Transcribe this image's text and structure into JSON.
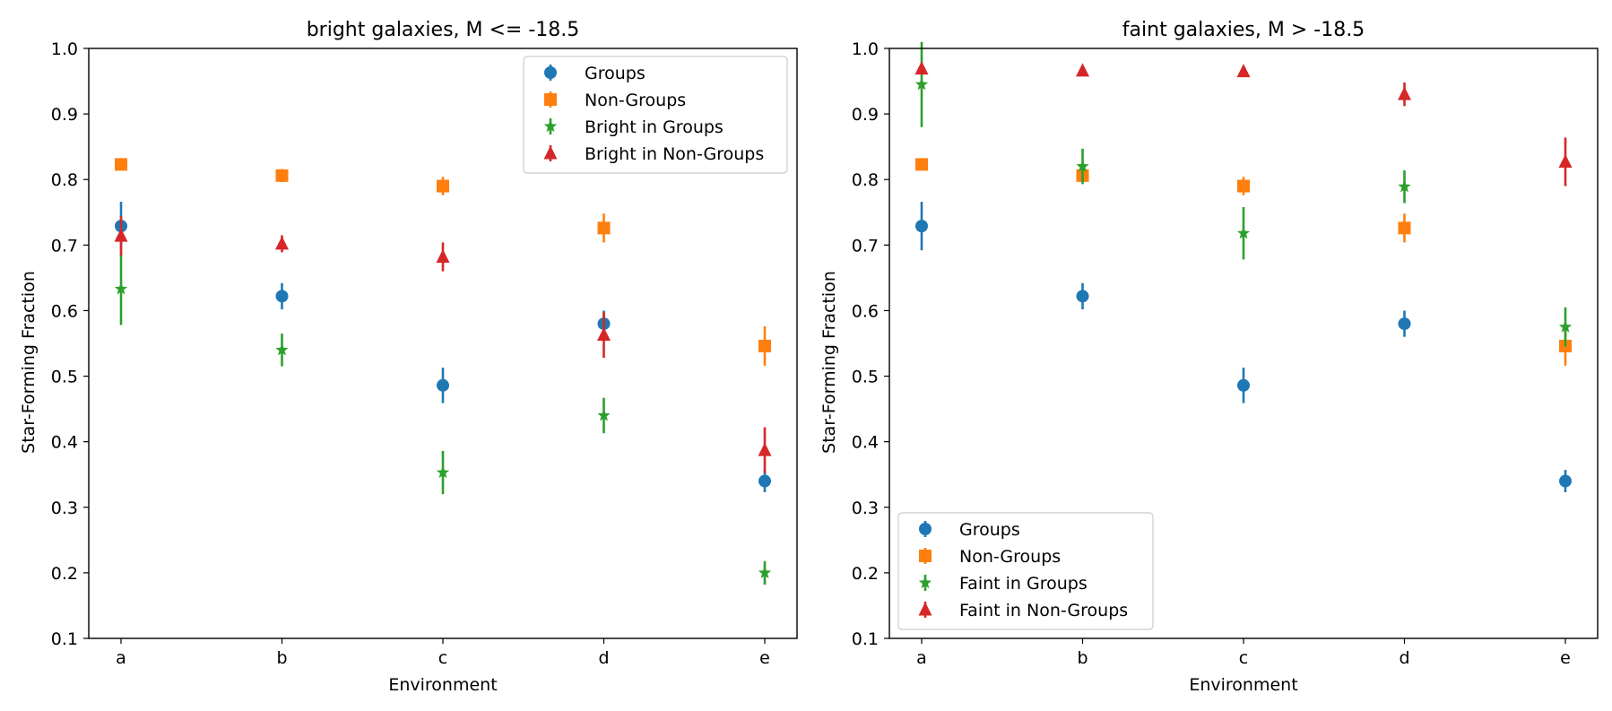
{
  "chart_data": [
    {
      "type": "scatter",
      "title": "bright galaxies, M <= -18.5",
      "xlabel": "Environment",
      "ylabel": "Star-Forming Fraction",
      "categories": [
        "a",
        "b",
        "c",
        "d",
        "e"
      ],
      "ylim": [
        0.1,
        1.0
      ],
      "yticks": [
        "0.1",
        "0.2",
        "0.3",
        "0.4",
        "0.5",
        "0.6",
        "0.7",
        "0.8",
        "0.9",
        "1.0"
      ],
      "legend_position": "upper right",
      "series": [
        {
          "name": "Groups",
          "marker": "circle",
          "color": "#1f77b4",
          "values": [
            0.729,
            0.622,
            0.486,
            0.58,
            0.34
          ],
          "errors": [
            0.037,
            0.02,
            0.027,
            0.02,
            0.017
          ]
        },
        {
          "name": "Non-Groups",
          "marker": "square",
          "color": "#ff7f0e",
          "values": [
            0.823,
            0.806,
            0.79,
            0.726,
            0.546
          ],
          "errors": [
            0.008,
            0.01,
            0.014,
            0.022,
            0.03
          ]
        },
        {
          "name": "Bright in Groups",
          "marker": "star",
          "color": "#2ca02c",
          "values": [
            0.633,
            0.54,
            0.353,
            0.44,
            0.2
          ],
          "errors": [
            0.055,
            0.025,
            0.033,
            0.027,
            0.018
          ]
        },
        {
          "name": "Bright in Non-Groups",
          "marker": "triangle",
          "color": "#d62728",
          "values": [
            0.714,
            0.702,
            0.682,
            0.563,
            0.387
          ],
          "errors": [
            0.03,
            0.013,
            0.022,
            0.035,
            0.035
          ]
        }
      ]
    },
    {
      "type": "scatter",
      "title": "faint galaxies, M > -18.5",
      "xlabel": "Environment",
      "ylabel": "Star-Forming Fraction",
      "categories": [
        "a",
        "b",
        "c",
        "d",
        "e"
      ],
      "ylim": [
        0.1,
        1.0
      ],
      "yticks": [
        "0.1",
        "0.2",
        "0.3",
        "0.4",
        "0.5",
        "0.6",
        "0.7",
        "0.8",
        "0.9",
        "1.0"
      ],
      "legend_position": "lower left",
      "series": [
        {
          "name": "Groups",
          "marker": "circle",
          "color": "#1f77b4",
          "values": [
            0.729,
            0.622,
            0.486,
            0.58,
            0.34
          ],
          "errors": [
            0.037,
            0.02,
            0.027,
            0.02,
            0.017
          ]
        },
        {
          "name": "Non-Groups",
          "marker": "square",
          "color": "#ff7f0e",
          "values": [
            0.823,
            0.806,
            0.79,
            0.726,
            0.546
          ],
          "errors": [
            0.008,
            0.01,
            0.014,
            0.022,
            0.03
          ]
        },
        {
          "name": "Faint in Groups",
          "marker": "star",
          "color": "#2ca02c",
          "values": [
            0.945,
            0.82,
            0.718,
            0.789,
            0.575
          ],
          "errors": [
            0.065,
            0.027,
            0.04,
            0.025,
            0.03
          ]
        },
        {
          "name": "Faint in Non-Groups",
          "marker": "triangle",
          "color": "#d62728",
          "values": [
            0.969,
            0.966,
            0.965,
            0.93,
            0.827
          ],
          "errors": [
            0.005,
            0.005,
            0.008,
            0.018,
            0.037
          ]
        }
      ]
    }
  ]
}
